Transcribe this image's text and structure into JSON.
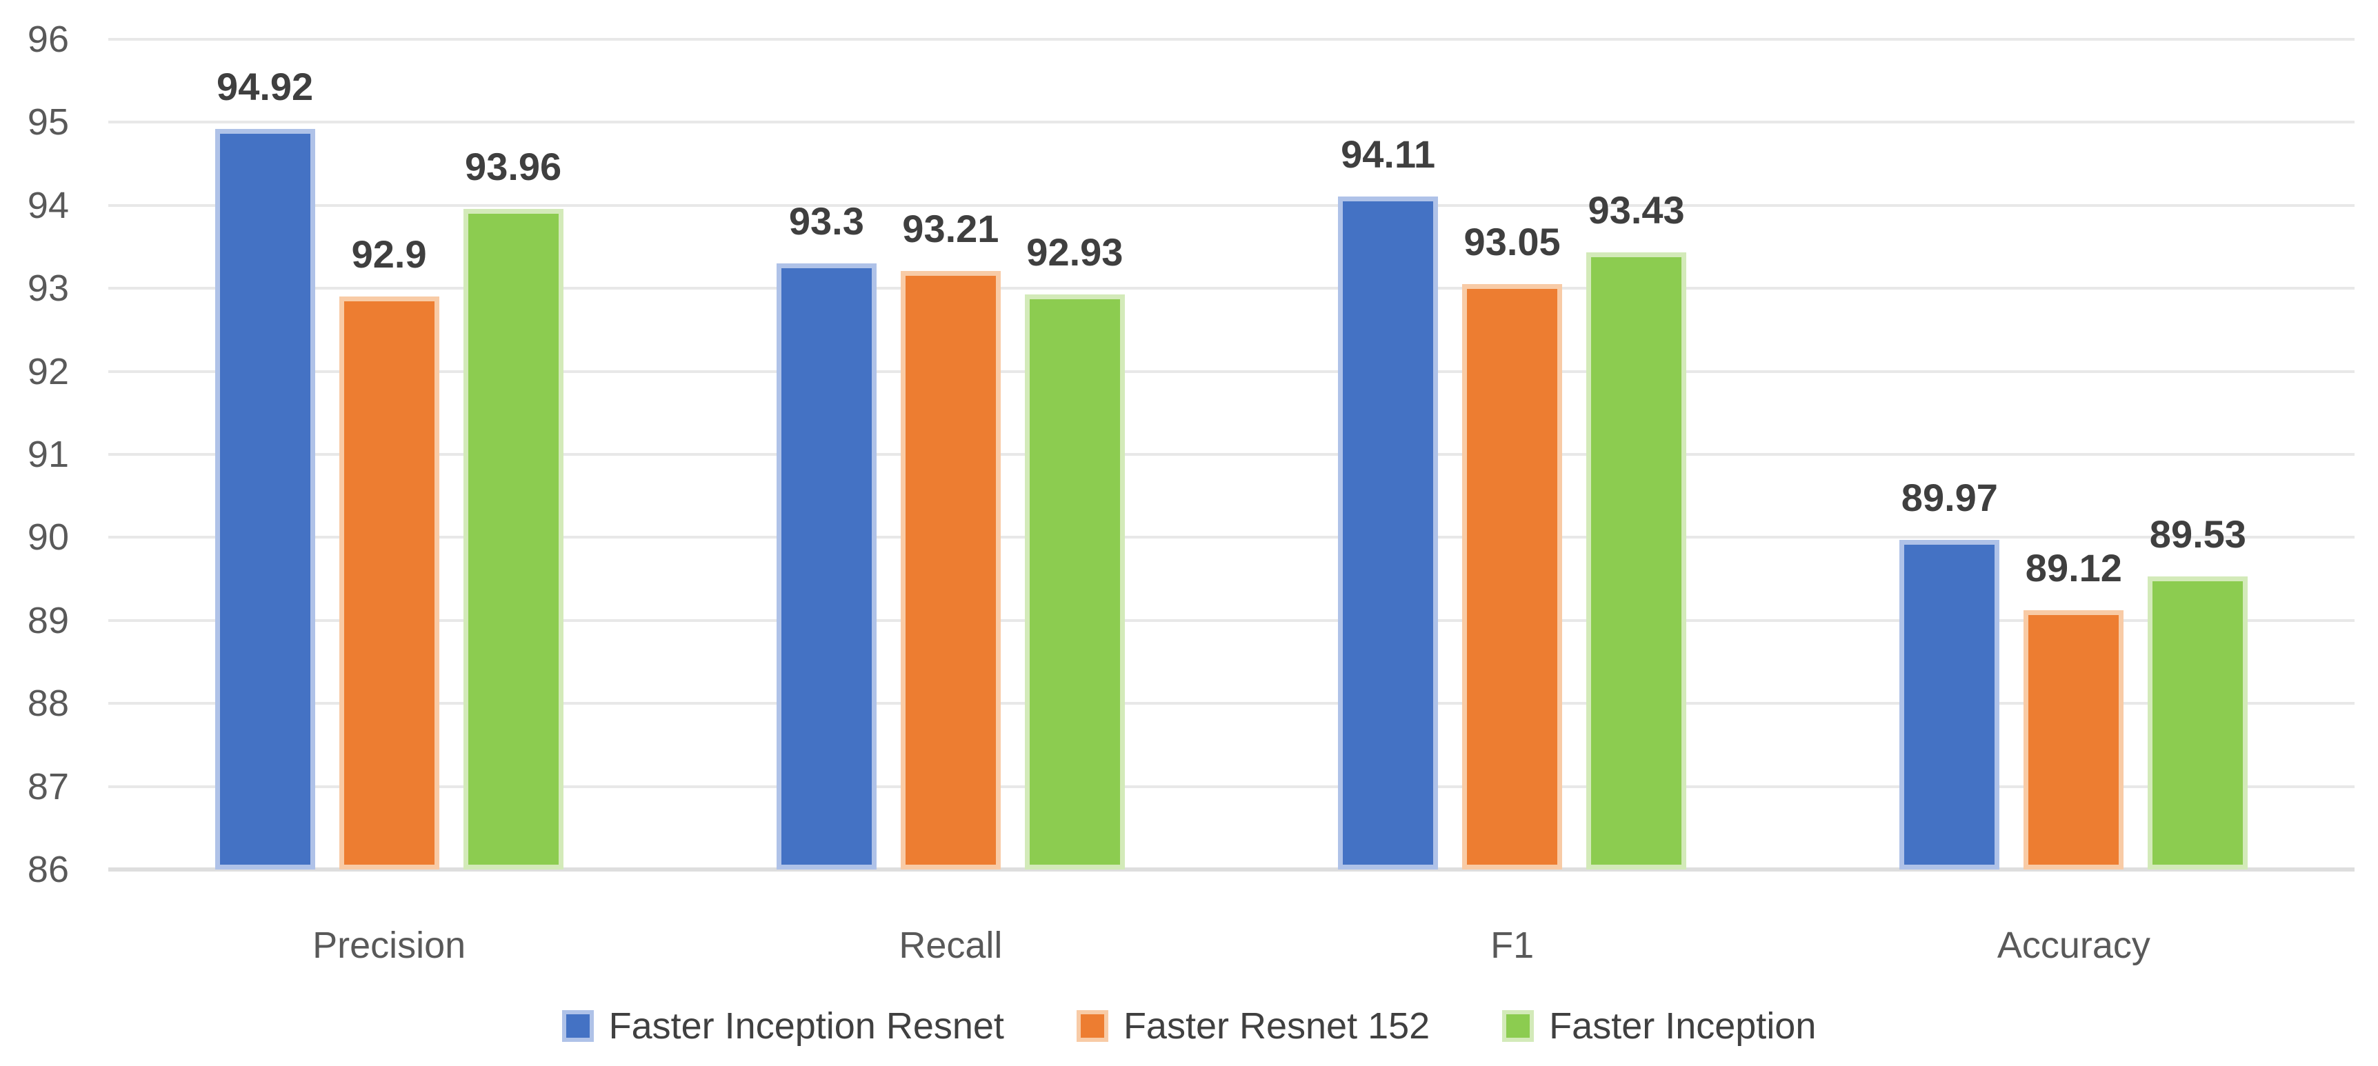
{
  "chart_data": {
    "type": "bar",
    "title": "",
    "xlabel": "",
    "ylabel": "",
    "categories": [
      "Precision",
      "Recall",
      "F1",
      "Accuracy"
    ],
    "series": [
      {
        "name": "Faster Inception Resnet",
        "color": "#4472C4",
        "edge_color": "#AFC2E8",
        "values": [
          94.92,
          93.3,
          94.11,
          89.97
        ],
        "labels": [
          "94.92",
          "93.3",
          "94.11",
          "89.97"
        ]
      },
      {
        "name": "Faster Resnet 152",
        "color": "#ED7D31",
        "edge_color": "#F8CBA6",
        "values": [
          92.9,
          93.21,
          93.05,
          89.12
        ],
        "labels": [
          "92.9",
          "93.21",
          "93.05",
          "89.12"
        ]
      },
      {
        "name": "Faster Inception",
        "color": "#8CCC50",
        "edge_color": "#D3EAB9",
        "values": [
          93.96,
          92.93,
          93.43,
          89.53
        ],
        "labels": [
          "93.96",
          "92.93",
          "93.43",
          "89.53"
        ]
      }
    ],
    "ylim": [
      86,
      96
    ],
    "yticks": [
      "96",
      "95",
      "94",
      "93",
      "92",
      "91",
      "90",
      "89",
      "88",
      "87",
      "86"
    ],
    "grid": true,
    "legend_position": "bottom",
    "colors": {
      "tick_text": "#595959",
      "value_label_text": "#3F3F3F",
      "legend_text": "#404040",
      "gridline": "#E8E8E8",
      "axis_line": "#DEDEDE",
      "background": "#FFFFFF"
    }
  }
}
